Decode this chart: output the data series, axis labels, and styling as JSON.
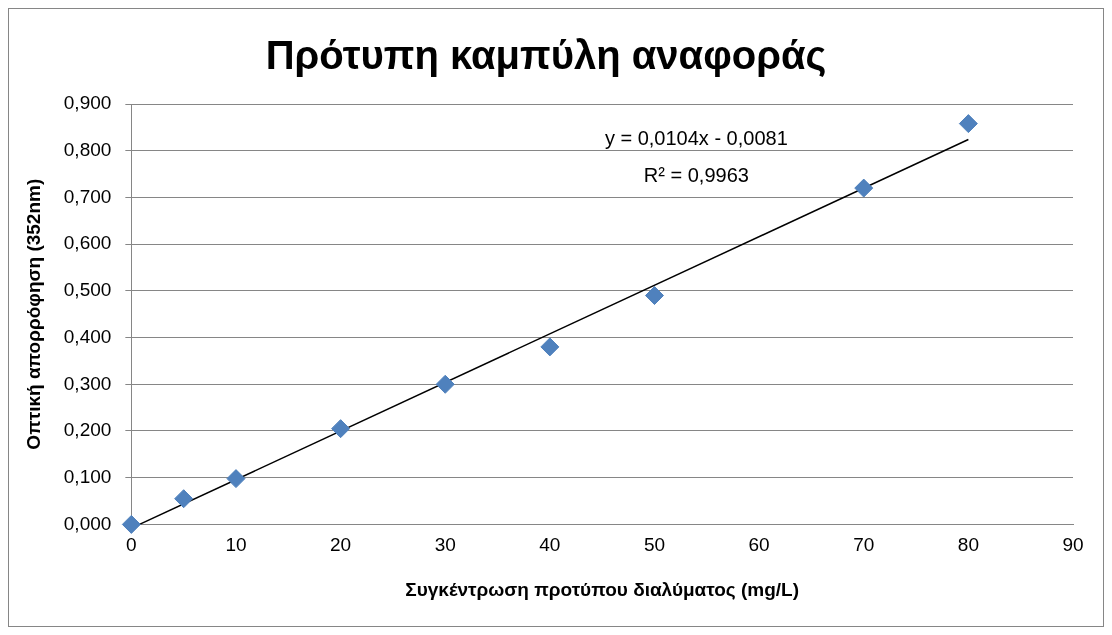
{
  "chart_data": {
    "type": "scatter",
    "title": "Πρότυπη καμπύλη αναφοράς",
    "xlabel": "Συγκέντρωση προτύπου διαλύματος (mg/L)",
    "ylabel": "Οπτική απορρόφηση (352nm)",
    "xlim": [
      0,
      90
    ],
    "xticks": [
      0,
      10,
      20,
      30,
      40,
      50,
      60,
      70,
      80,
      90
    ],
    "ylim": [
      0,
      0.9
    ],
    "yticks": [
      {
        "value": 0,
        "label": "0,000"
      },
      {
        "value": 0.1,
        "label": "0,100"
      },
      {
        "value": 0.2,
        "label": "0,200"
      },
      {
        "value": 0.3,
        "label": "0,300"
      },
      {
        "value": 0.4,
        "label": "0,400"
      },
      {
        "value": 0.5,
        "label": "0,500"
      },
      {
        "value": 0.6,
        "label": "0,600"
      },
      {
        "value": 0.7,
        "label": "0,700"
      },
      {
        "value": 0.8,
        "label": "0,800"
      },
      {
        "value": 0.9,
        "label": "0,900"
      }
    ],
    "grid": "y",
    "legend": false,
    "marker": "diamond",
    "x": [
      0,
      5,
      10,
      20,
      30,
      40,
      50,
      70,
      80
    ],
    "series": [
      {
        "type": "line",
        "color": "#000000",
        "marker": "none",
        "x": [
          0.78,
          80
        ],
        "values": [
          0,
          0.824
        ]
      },
      {
        "type": "scatter",
        "color": "#4f81bd",
        "values": [
          0,
          0.055,
          0.098,
          0.205,
          0.3,
          0.38,
          0.49,
          0.72,
          0.858
        ]
      }
    ],
    "annotations": [
      "y = 0,0104x - 0,0081",
      "R² = 0,9963"
    ]
  }
}
